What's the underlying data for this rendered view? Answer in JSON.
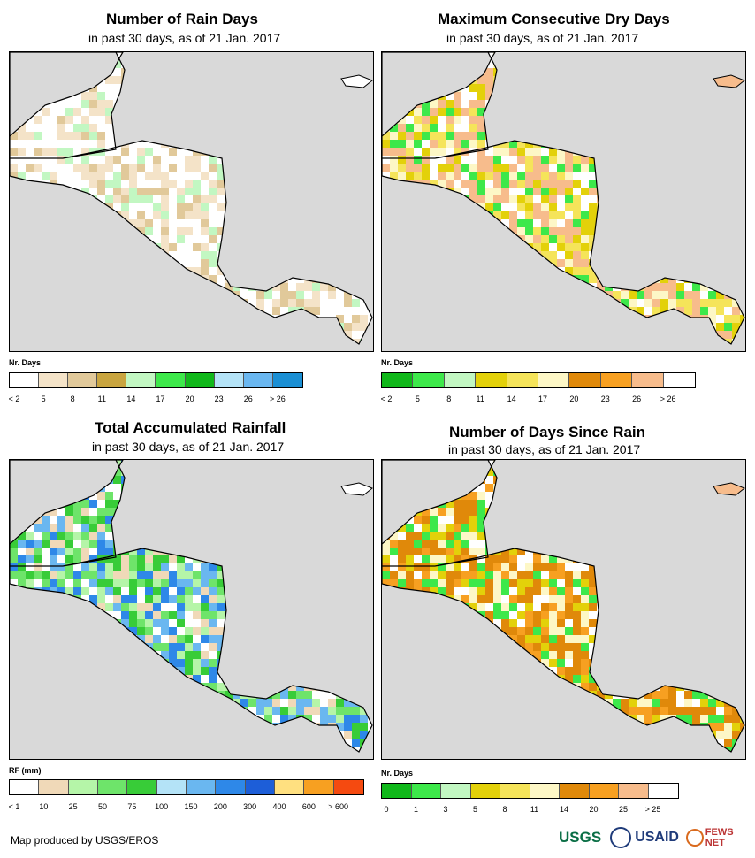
{
  "panels": [
    {
      "title": "Number of Rain Days",
      "subtitle": "in past 30 days, as of 21 Jan. 2017",
      "legend_unit": "Nr. Days",
      "legend_colors": [
        "#ffffff",
        "#f4e3c8",
        "#e1c99a",
        "#c9a53f",
        "#c2f7c2",
        "#3de84a",
        "#10b81a",
        "#b4e3f7",
        "#6ab7f0",
        "#1a8fd4"
      ],
      "legend_ticks": [
        "< 2",
        "5",
        "8",
        "11",
        "14",
        "17",
        "20",
        "23",
        "26",
        "> 26"
      ]
    },
    {
      "title": "Maximum Consecutive Dry Days",
      "subtitle": "in past 30 days, as of 21 Jan. 2017",
      "legend_unit": "Nr. Days",
      "legend_colors": [
        "#10b81a",
        "#3de84a",
        "#c2f7c2",
        "#e3d10a",
        "#f5e45a",
        "#fdf7c6",
        "#e0890a",
        "#f7a021",
        "#f7bc8c",
        "#ffffff"
      ],
      "legend_ticks": [
        "< 2",
        "5",
        "8",
        "11",
        "14",
        "17",
        "20",
        "23",
        "26",
        "> 26"
      ]
    },
    {
      "title": "Total Accumulated Rainfall",
      "subtitle": "in past 30 days, as of 21 Jan. 2017",
      "legend_unit": "RF (mm)",
      "legend_colors": [
        "#ffffff",
        "#f0d9b8",
        "#b5f5a8",
        "#6ee46a",
        "#38cc38",
        "#b4e3f7",
        "#6ab7f0",
        "#2e88e8",
        "#1d5ed8",
        "#ffe080",
        "#f7a021",
        "#f54a10"
      ],
      "legend_ticks": [
        "< 1",
        "10",
        "25",
        "50",
        "75",
        "100",
        "150",
        "200",
        "300",
        "400",
        "600",
        "> 600"
      ]
    },
    {
      "title": "Number of Days Since Rain",
      "subtitle": "in past 30 days, as of 21 Jan. 2017",
      "legend_unit": "Nr. Days",
      "legend_colors": [
        "#10b81a",
        "#3de84a",
        "#c2f7c2",
        "#e3d10a",
        "#f5e45a",
        "#fdf7c6",
        "#e0890a",
        "#f7a021",
        "#f7bc8c",
        "#ffffff"
      ],
      "legend_ticks": [
        "0",
        "1",
        "3",
        "5",
        "8",
        "11",
        "14",
        "20",
        "25",
        "> 25"
      ]
    }
  ],
  "footer": {
    "credit": "Map produced by USGS/EROS",
    "logos": [
      "USGS",
      "USAID",
      "FEWS NET"
    ]
  }
}
